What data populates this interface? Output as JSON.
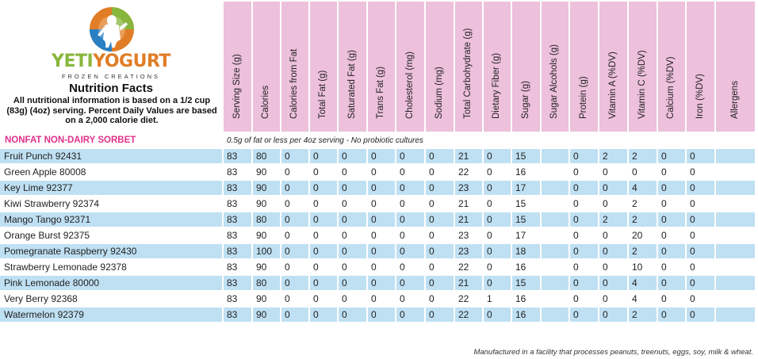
{
  "brand": {
    "name_part1": "YETI",
    "name_part2": "YOGURT",
    "tagline": "FROZEN CREATIONS",
    "colors": {
      "green": "#88b63d",
      "orange": "#e07d26",
      "blue": "#2a7fc3"
    }
  },
  "nutrition_title": "Nutrition Facts",
  "nutrition_description": "All nutritional information is based on a 1/2 cup (83g) (4oz) serving.  Percent Daily Values are based on a 2,000 calorie diet.",
  "columns": [
    "Serving Size (g)",
    "Calories",
    "Calories from Fat",
    "Total Fat (g)",
    "Saturated Fat (g)",
    "Trans Fat (g)",
    "Cholesterol (mg)",
    "Sodium (mg)",
    "Total Carbohydrate (g)",
    "Dietary Fiber (g)",
    "Sugar (g)",
    "Sugar Alcohols (g)",
    "Protein (g)",
    "Vitamin A (%DV)",
    "Vitamin C (%DV)",
    "Calcium (%DV)",
    "Iron (%DV)",
    "Allergens"
  ],
  "section": {
    "title": "NONFAT NON-DAIRY SORBET",
    "note": "0.5g of fat or less per 4oz serving - No probiotic cultures"
  },
  "rows": [
    {
      "name": "Fruit Punch 92431",
      "values": [
        "83",
        "80",
        "0",
        "0",
        "0",
        "0",
        "0",
        "0",
        "21",
        "0",
        "15",
        "",
        "0",
        "2",
        "2",
        "0",
        "0",
        ""
      ]
    },
    {
      "name": "Green Apple 80008",
      "values": [
        "83",
        "90",
        "0",
        "0",
        "0",
        "0",
        "0",
        "0",
        "22",
        "0",
        "16",
        "",
        "0",
        "0",
        "0",
        "0",
        "0",
        ""
      ]
    },
    {
      "name": "Key Lime 92377",
      "values": [
        "83",
        "90",
        "0",
        "0",
        "0",
        "0",
        "0",
        "0",
        "23",
        "0",
        "17",
        "",
        "0",
        "0",
        "4",
        "0",
        "0",
        ""
      ]
    },
    {
      "name": "Kiwi Strawberry 92374",
      "values": [
        "83",
        "90",
        "0",
        "0",
        "0",
        "0",
        "0",
        "0",
        "21",
        "0",
        "15",
        "",
        "0",
        "0",
        "2",
        "0",
        "0",
        ""
      ]
    },
    {
      "name": "Mango Tango 92371",
      "values": [
        "83",
        "80",
        "0",
        "0",
        "0",
        "0",
        "0",
        "0",
        "21",
        "0",
        "15",
        "",
        "0",
        "2",
        "2",
        "0",
        "0",
        ""
      ]
    },
    {
      "name": "Orange Burst 92375",
      "values": [
        "83",
        "90",
        "0",
        "0",
        "0",
        "0",
        "0",
        "0",
        "23",
        "0",
        "17",
        "",
        "0",
        "0",
        "20",
        "0",
        "0",
        ""
      ]
    },
    {
      "name": "Pomegranate Raspberry 92430",
      "values": [
        "83",
        "100",
        "0",
        "0",
        "0",
        "0",
        "0",
        "0",
        "23",
        "0",
        "18",
        "",
        "0",
        "0",
        "2",
        "0",
        "0",
        ""
      ]
    },
    {
      "name": "Strawberry Lemonade 92378",
      "values": [
        "83",
        "90",
        "0",
        "0",
        "0",
        "0",
        "0",
        "0",
        "22",
        "0",
        "16",
        "",
        "0",
        "0",
        "10",
        "0",
        "0",
        ""
      ]
    },
    {
      "name": "Pink Lemonade 80000",
      "values": [
        "83",
        "80",
        "0",
        "0",
        "0",
        "0",
        "0",
        "0",
        "21",
        "0",
        "15",
        "",
        "0",
        "0",
        "4",
        "0",
        "0",
        ""
      ]
    },
    {
      "name": "Very Berry 92368",
      "values": [
        "83",
        "90",
        "0",
        "0",
        "0",
        "0",
        "0",
        "0",
        "22",
        "1",
        "16",
        "",
        "0",
        "0",
        "4",
        "0",
        "0",
        ""
      ]
    },
    {
      "name": "Watermelon 92379",
      "values": [
        "83",
        "90",
        "0",
        "0",
        "0",
        "0",
        "0",
        "0",
        "22",
        "0",
        "16",
        "",
        "0",
        "0",
        "2",
        "0",
        "0",
        ""
      ]
    }
  ],
  "footer": "Manufactured in a facility that processes peanuts, treenuts, eggs, soy, milk & wheat.",
  "colors": {
    "header_pink": "#edc0dc",
    "row_blue": "#bfe0f3",
    "section_magenta": "#e0318a"
  }
}
